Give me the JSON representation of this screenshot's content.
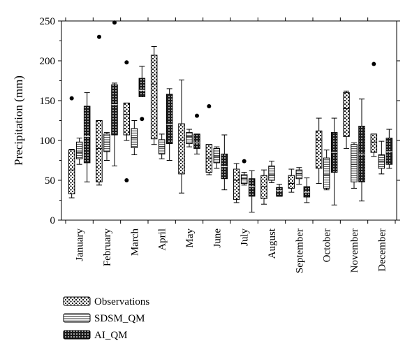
{
  "chart_data": {
    "type": "boxplot",
    "ylabel": "Precipitation (mm)",
    "ylim": [
      0,
      250
    ],
    "yticks": [
      0,
      50,
      100,
      150,
      200,
      250
    ],
    "categories": [
      "January",
      "February",
      "March",
      "April",
      "May",
      "June",
      "July",
      "August",
      "September",
      "October",
      "November",
      "December"
    ],
    "legend_position": "bottom-left",
    "series": [
      {
        "name": "Observations",
        "pattern": "dots",
        "boxes": [
          {
            "min": 28,
            "q1": 33,
            "median": 63,
            "q3": 88,
            "max": 89,
            "outliers": [
              153
            ]
          },
          {
            "min": 44,
            "q1": 48,
            "median": 90,
            "q3": 125,
            "max": 125,
            "outliers": [
              230
            ]
          },
          {
            "min": 100,
            "q1": 107,
            "median": 133,
            "q3": 147,
            "max": 147,
            "outliers": [
              198,
              50
            ]
          },
          {
            "min": 95,
            "q1": 102,
            "median": 170,
            "q3": 207,
            "max": 218,
            "outliers": []
          },
          {
            "min": 34,
            "q1": 58,
            "median": 100,
            "q3": 121,
            "max": 176,
            "outliers": []
          },
          {
            "min": 57,
            "q1": 60,
            "median": 78,
            "q3": 95,
            "max": 95,
            "outliers": [
              143
            ]
          },
          {
            "min": 22,
            "q1": 26,
            "median": 50,
            "q3": 64,
            "max": 71,
            "outliers": []
          },
          {
            "min": 20,
            "q1": 27,
            "median": 42,
            "q3": 56,
            "max": 63,
            "outliers": []
          },
          {
            "min": 35,
            "q1": 40,
            "median": 46,
            "q3": 56,
            "max": 64,
            "outliers": []
          },
          {
            "min": 46,
            "q1": 65,
            "median": 100,
            "q3": 112,
            "max": 128,
            "outliers": []
          },
          {
            "min": 90,
            "q1": 105,
            "median": 140,
            "q3": 160,
            "max": 162,
            "outliers": []
          },
          {
            "min": 80,
            "q1": 85,
            "median": 98,
            "q3": 108,
            "max": 108,
            "outliers": [
              196
            ]
          }
        ]
      },
      {
        "name": "SDSM_QM",
        "pattern": "lines",
        "boxes": [
          {
            "min": 70,
            "q1": 77,
            "median": 85,
            "q3": 98,
            "max": 103,
            "outliers": []
          },
          {
            "min": 75,
            "q1": 86,
            "median": 98,
            "q3": 108,
            "max": 110,
            "outliers": []
          },
          {
            "min": 82,
            "q1": 91,
            "median": 103,
            "q3": 115,
            "max": 125,
            "outliers": []
          },
          {
            "min": 77,
            "q1": 83,
            "median": 92,
            "q3": 101,
            "max": 108,
            "outliers": []
          },
          {
            "min": 92,
            "q1": 96,
            "median": 105,
            "q3": 110,
            "max": 114,
            "outliers": []
          },
          {
            "min": 65,
            "q1": 72,
            "median": 80,
            "q3": 90,
            "max": 92,
            "outliers": []
          },
          {
            "min": 44,
            "q1": 46,
            "median": 52,
            "q3": 57,
            "max": 60,
            "outliers": [
              74
            ]
          },
          {
            "min": 47,
            "q1": 50,
            "median": 57,
            "q3": 68,
            "max": 74,
            "outliers": []
          },
          {
            "min": 45,
            "q1": 52,
            "median": 58,
            "q3": 63,
            "max": 66,
            "outliers": []
          },
          {
            "min": 38,
            "q1": 40,
            "median": 57,
            "q3": 78,
            "max": 88,
            "outliers": []
          },
          {
            "min": 40,
            "q1": 48,
            "median": 70,
            "q3": 95,
            "max": 97,
            "outliers": []
          },
          {
            "min": 58,
            "q1": 65,
            "median": 74,
            "q3": 82,
            "max": 99,
            "outliers": []
          }
        ]
      },
      {
        "name": "AI_QM",
        "pattern": "crosshatch",
        "boxes": [
          {
            "min": 48,
            "q1": 72,
            "median": 105,
            "q3": 143,
            "max": 160,
            "outliers": []
          },
          {
            "min": 68,
            "q1": 107,
            "median": 145,
            "q3": 170,
            "max": 172,
            "outliers": [
              248
            ]
          },
          {
            "min": 155,
            "q1": 155,
            "median": 163,
            "q3": 178,
            "max": 193,
            "outliers": [
              127
            ]
          },
          {
            "min": 75,
            "q1": 96,
            "median": 120,
            "q3": 158,
            "max": 165,
            "outliers": []
          },
          {
            "min": 83,
            "q1": 90,
            "median": 97,
            "q3": 108,
            "max": 108,
            "outliers": [
              131
            ]
          },
          {
            "min": 38,
            "q1": 52,
            "median": 67,
            "q3": 83,
            "max": 107,
            "outliers": []
          },
          {
            "min": 10,
            "q1": 30,
            "median": 42,
            "q3": 52,
            "max": 62,
            "outliers": []
          },
          {
            "min": 30,
            "q1": 30,
            "median": 37,
            "q3": 41,
            "max": 45,
            "outliers": []
          },
          {
            "min": 22,
            "q1": 29,
            "median": 35,
            "q3": 42,
            "max": 53,
            "outliers": []
          },
          {
            "min": 19,
            "q1": 60,
            "median": 85,
            "q3": 110,
            "max": 128,
            "outliers": []
          },
          {
            "min": 24,
            "q1": 48,
            "median": 83,
            "q3": 118,
            "max": 152,
            "outliers": []
          },
          {
            "min": 65,
            "q1": 70,
            "median": 86,
            "q3": 103,
            "max": 114,
            "outliers": []
          }
        ]
      }
    ]
  }
}
